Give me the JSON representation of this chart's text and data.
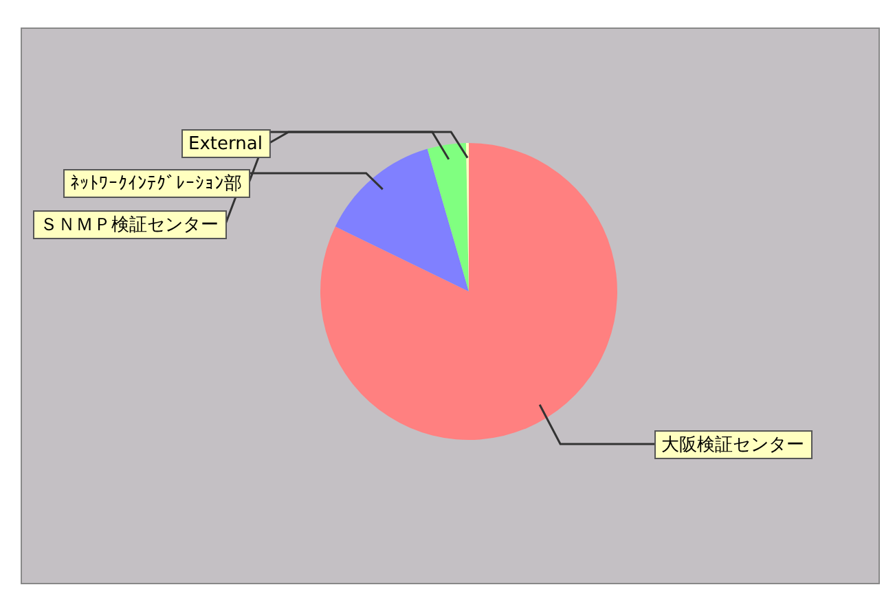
{
  "chart_data": {
    "type": "pie",
    "categories": [
      "大阪検証センター",
      "ＳＮＭＰ検証センター",
      "ﾈｯﾄﾜｰｸｲﾝﾃｸﾞﾚｰｼｮﾝ部",
      "External"
    ],
    "values": [
      82.2,
      13.3,
      4.2,
      0.3
    ],
    "colors": [
      "#ff8080",
      "#8080ff",
      "#80ff80",
      "#ffffc0"
    ],
    "legend": false
  }
}
